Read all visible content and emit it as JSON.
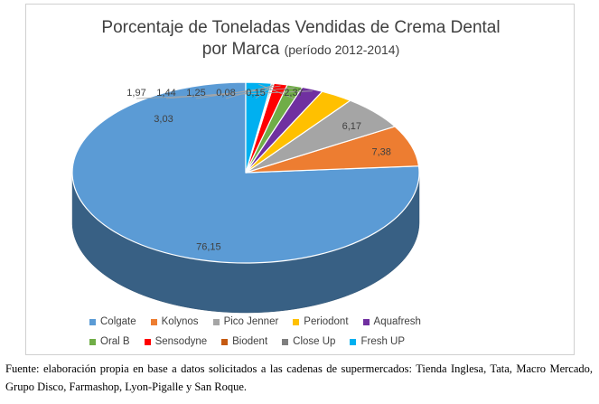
{
  "chart_data": {
    "type": "pie",
    "title": "Porcentaje de Toneladas Vendidas de Crema Dental",
    "title_line2": "por Marca",
    "subtitle": "(período 2012-2014)",
    "series": [
      {
        "name": "Colgate",
        "value": 76.15,
        "label": "76,15",
        "color": "#5B9BD5"
      },
      {
        "name": "Kolynos",
        "value": 7.38,
        "label": "7,38",
        "color": "#ED7D31"
      },
      {
        "name": "Pico Jenner",
        "value": 6.17,
        "label": "6,17",
        "color": "#A5A5A5"
      },
      {
        "name": "Periodont",
        "value": 3.03,
        "label": "3,03",
        "color": "#FFC000"
      },
      {
        "name": "Aquafresh",
        "value": 1.97,
        "label": "1,97",
        "color": "#7030A0"
      },
      {
        "name": "Oral B",
        "value": 1.44,
        "label": "1,44",
        "color": "#70AD47"
      },
      {
        "name": "Sensodyne",
        "value": 1.25,
        "label": "1,25",
        "color": "#FF0000"
      },
      {
        "name": "Biodent",
        "value": 0.08,
        "label": "0,08",
        "color": "#C55A11"
      },
      {
        "name": "Close Up",
        "value": 0.15,
        "label": "0,15",
        "color": "#7F7F7F"
      },
      {
        "name": "Fresh UP",
        "value": 2.37,
        "label": "2,37",
        "color": "#00B0F0"
      }
    ],
    "legend_position": "bottom",
    "style": "3d"
  },
  "source_note": "Fuente: elaboración propia en base a datos solicitados a las cadenas de supermercados: Tienda Inglesa, Tata, Macro Mercado, Grupo Disco, Farmashop, Lyon-Pigalle y San Roque."
}
